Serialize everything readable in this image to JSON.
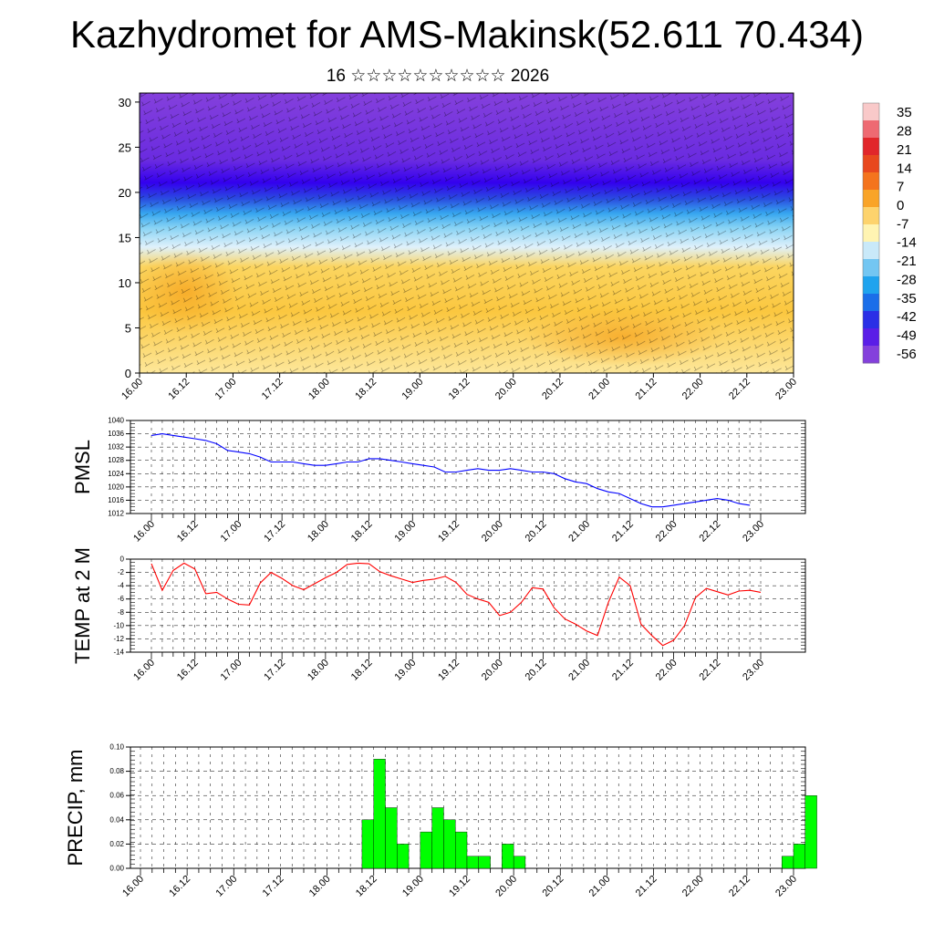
{
  "title": "Kazhydromet for AMS-Makinsk(52.611 70.434)",
  "subtitle": "16 ☆☆☆☆☆☆☆☆☆☆ 2026",
  "time_labels": [
    "16.00",
    "16.12",
    "17.00",
    "17.12",
    "18.00",
    "18.12",
    "19.00",
    "19.12",
    "20.00",
    "20.12",
    "21.00",
    "21.12",
    "22.00",
    "22.12",
    "23.00"
  ],
  "chart_data": [
    {
      "type": "heatmap",
      "name": "vertical temperature cross-section with wind barbs",
      "title": "",
      "xlabel": "",
      "ylabel": "",
      "x_ticks": [
        "16.00",
        "16.12",
        "17.00",
        "17.12",
        "18.00",
        "18.12",
        "19.00",
        "19.12",
        "20.00",
        "20.12",
        "21.00",
        "21.12",
        "22.00",
        "22.12",
        "23.00"
      ],
      "ylim": [
        0,
        31
      ],
      "y_ticks": [
        0,
        5,
        10,
        15,
        20,
        25,
        30
      ],
      "colorbar_labels": [
        "35",
        "28",
        "21",
        "14",
        "7",
        "0",
        "-7",
        "-14",
        "-21",
        "-28",
        "-35",
        "-42",
        "-49",
        "-56"
      ],
      "bands": [
        {
          "range": [
            0,
            13
          ],
          "level": "warm (about -7 to -10)"
        },
        {
          "range": [
            13,
            19
          ],
          "level": "cold (about -28 to -40)"
        },
        {
          "range": [
            19,
            31
          ],
          "level": "very cold (about -56)"
        }
      ]
    },
    {
      "type": "line",
      "name": "PMSL",
      "ylabel": "PMSL",
      "ylim": [
        1012,
        1040
      ],
      "y_ticks": [
        "1012",
        "1016",
        "1020",
        "1024",
        "1028",
        "1032",
        "1036",
        "1040"
      ],
      "x_ticks": [
        "16.00",
        "16.12",
        "17.00",
        "17.12",
        "18.00",
        "18.12",
        "19.00",
        "19.12",
        "20.00",
        "20.12",
        "21.00",
        "21.12",
        "22.00",
        "22.12",
        "23.00"
      ],
      "x_step_hours": 3,
      "color": "#0000ff",
      "values": [
        1035.5,
        1036,
        1035.5,
        1035,
        1034.5,
        1034,
        1033,
        1031,
        1030.5,
        1030,
        1029,
        1027.5,
        1027.5,
        1027.5,
        1027,
        1026.5,
        1026.5,
        1027,
        1027.5,
        1027.5,
        1028.5,
        1028.5,
        1028,
        1027.5,
        1027,
        1026.5,
        1026,
        1024.5,
        1024.5,
        1025,
        1025.5,
        1025,
        1025,
        1025.5,
        1025,
        1024.5,
        1024.5,
        1024,
        1022.5,
        1021.5,
        1021,
        1019.5,
        1018.5,
        1018,
        1016.5,
        1015,
        1014,
        1014,
        1014.5,
        1015,
        1015.5,
        1016,
        1016.5,
        1016,
        1015,
        1014.5
      ]
    },
    {
      "type": "line",
      "name": "TEMP at 2 M",
      "ylabel": "TEMP at 2 M",
      "ylim": [
        -14,
        0
      ],
      "y_ticks": [
        "-14",
        "-12",
        "-10",
        "-8",
        "-6",
        "-4",
        "-2",
        "0"
      ],
      "x_ticks": [
        "16.00",
        "16.12",
        "17.00",
        "17.12",
        "18.00",
        "18.12",
        "19.00",
        "19.12",
        "20.00",
        "20.12",
        "21.00",
        "21.12",
        "22.00",
        "22.12",
        "23.00"
      ],
      "x_step_hours": 3,
      "color": "#ff0000",
      "values": [
        -0.7,
        -4.7,
        -1.7,
        -0.6,
        -1.5,
        -5.2,
        -5,
        -6,
        -6.8,
        -6.9,
        -3.6,
        -2,
        -2.9,
        -4,
        -4.6,
        -3.7,
        -2.8,
        -2,
        -0.8,
        -0.6,
        -0.7,
        -1.9,
        -2.5,
        -3,
        -3.5,
        -3.2,
        -3,
        -2.6,
        -3.5,
        -5.3,
        -6,
        -6.5,
        -8.5,
        -8,
        -6.5,
        -4.3,
        -4.5,
        -7.3,
        -9,
        -9.8,
        -10.8,
        -11.5,
        -6.5,
        -2.7,
        -4,
        -9.8,
        -11.5,
        -13,
        -12.2,
        -10,
        -5.8,
        -4.4,
        -4.9,
        -5.4,
        -4.8,
        -4.7,
        -5
      ]
    },
    {
      "type": "bar",
      "name": "PRECIP, mm",
      "ylabel": "PRECIP, mm",
      "ylim": [
        0,
        0.1
      ],
      "y_ticks": [
        "0.00",
        "0.02",
        "0.04",
        "0.06",
        "0.08",
        "0.10"
      ],
      "x_ticks": [
        "16.00",
        "16.12",
        "17.00",
        "17.12",
        "18.00",
        "18.12",
        "19.00",
        "19.12",
        "20.00",
        "20.12",
        "21.00",
        "21.12",
        "22.00",
        "22.12",
        "23.00"
      ],
      "bar_hours": 3,
      "color": "#00ff00",
      "values": [
        0,
        0,
        0,
        0,
        0,
        0,
        0,
        0,
        0,
        0,
        0,
        0,
        0,
        0,
        0,
        0,
        0,
        0,
        0,
        0.04,
        0.09,
        0.05,
        0.02,
        0,
        0.03,
        0.05,
        0.04,
        0.03,
        0.01,
        0.01,
        0,
        0.02,
        0.01,
        0,
        0,
        0,
        0,
        0,
        0,
        0,
        0,
        0,
        0,
        0,
        0,
        0,
        0,
        0,
        0,
        0,
        0,
        0,
        0,
        0,
        0,
        0.01,
        0.02,
        0.06
      ]
    }
  ]
}
